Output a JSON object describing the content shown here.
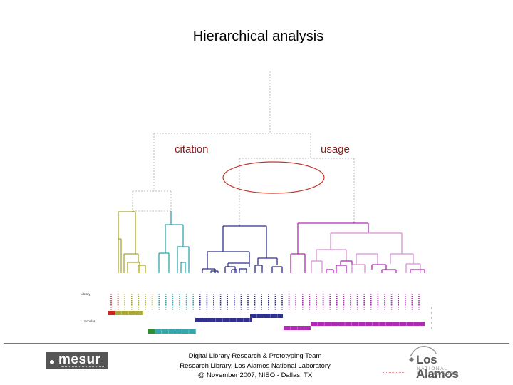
{
  "title": "Hierarchical analysis",
  "branches": {
    "left": "citation",
    "right": "usage"
  },
  "footer": {
    "lines": [
      "Digital Library Research & Prototyping Team",
      "Research Library, Los Alamos National Laboratory",
      "@ November 2007, NISO - Dallas, TX"
    ]
  },
  "logos": {
    "mesur": "mesur",
    "lanl": "Los Alamos",
    "lanl_sub": "NATIONAL LABORATORY"
  },
  "colors": {
    "olive": "#a9a832",
    "teal": "#33a6ae",
    "navy": "#2f2f8f",
    "magenta": "#b02ab6",
    "pink": "#d98fd6",
    "dashed": "#bbbbbb",
    "highlight": "#c0392b",
    "red": "#cc2222",
    "green": "#2f8f2f"
  },
  "row_labels": [
    "Library",
    "L. Scholar"
  ],
  "leaf_count": 46
}
